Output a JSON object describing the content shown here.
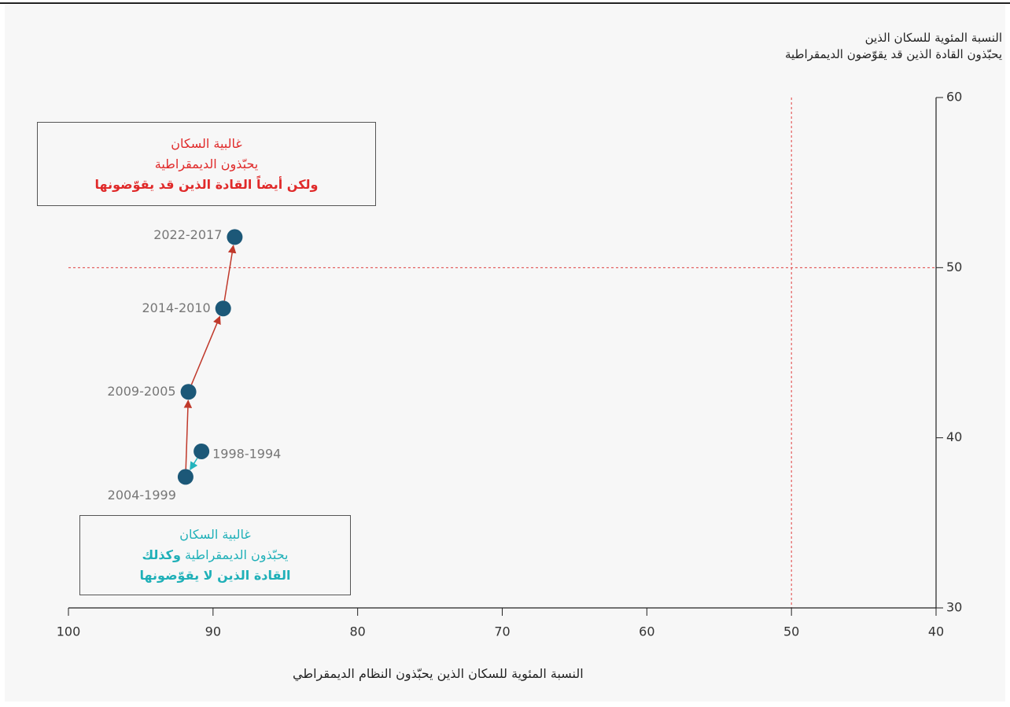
{
  "chart_data": {
    "type": "connected_scatter",
    "y_axis_title": [
      "النسبة المئوية للسكان الذين",
      "يحبّذون القادة الذين قد يقوّضون الديمقراطية"
    ],
    "x_axis_title": "النسبة المئوية للسكان الذين يحبّذون النظام الديمقراطي",
    "labels": [
      "1998-1994",
      "2004-1999",
      "2009-2005",
      "2014-2010",
      "2022-2017"
    ],
    "x": [
      90.8,
      91.9,
      91.7,
      89.3,
      88.5
    ],
    "y": [
      39.2,
      37.7,
      42.7,
      47.6,
      51.8
    ],
    "point_color": "#1c5878",
    "arrow_colors": [
      "#22b3bd",
      "#c0392b",
      "#c0392b",
      "#c0392b"
    ],
    "xlim": [
      100,
      40
    ],
    "xticks": [
      100,
      90,
      80,
      70,
      60,
      50,
      40
    ],
    "ylim": [
      30,
      60
    ],
    "yticks": [
      30,
      40,
      50,
      60
    ],
    "reference_lines": {
      "x": 50,
      "y": 50,
      "color": "#e04040"
    },
    "annotations": [
      {
        "color": "#e02a2a",
        "lines": [
          [
            {
              "text": "غالبية السكان",
              "bold": false
            }
          ],
          [
            {
              "text": "يحبّذون الديمقراطية",
              "bold": false
            }
          ],
          [
            {
              "text": "ولكن أيضاً القادة الذين قد يقوّضونها",
              "bold": true
            }
          ]
        ]
      },
      {
        "color": "#1fb0b8",
        "lines": [
          [
            {
              "text": "غالبية السكان",
              "bold": false
            }
          ],
          [
            {
              "text": "يحبّذون الديمقراطية",
              "bold": false
            },
            {
              "text": "وكذلك",
              "bold": true
            }
          ],
          [
            {
              "text": "القادة الذين لا يقوّضونها",
              "bold": true
            }
          ]
        ]
      }
    ]
  }
}
